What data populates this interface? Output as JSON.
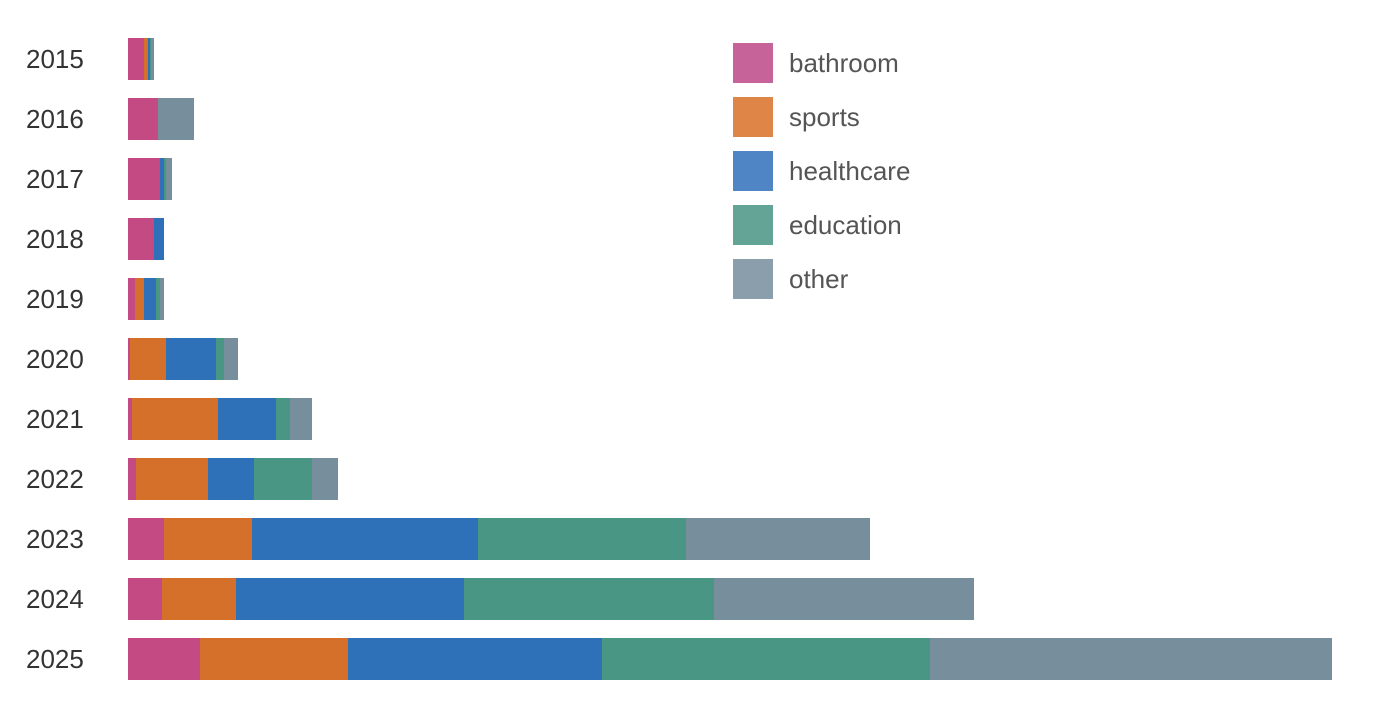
{
  "chart_data": {
    "type": "bar",
    "orientation": "horizontal",
    "stacked": true,
    "title": "",
    "xlabel": "",
    "ylabel": "",
    "grid": false,
    "legend_position": "top-right",
    "categories": [
      "2015",
      "2016",
      "2017",
      "2018",
      "2019",
      "2020",
      "2021",
      "2022",
      "2023",
      "2024",
      "2025"
    ],
    "series": [
      {
        "name": "bathroom",
        "color": "#c44a84",
        "values": [
          16,
          30,
          32,
          26,
          7,
          2,
          4,
          8,
          36,
          34,
          72
        ]
      },
      {
        "name": "sports",
        "color": "#d4702a",
        "values": [
          4,
          0,
          0,
          0,
          9,
          36,
          86,
          72,
          88,
          74,
          148
        ]
      },
      {
        "name": "healthcare",
        "color": "#2f71b8",
        "values": [
          2,
          0,
          4,
          10,
          12,
          50,
          58,
          46,
          226,
          228,
          254
        ]
      },
      {
        "name": "education",
        "color": "#4a9685",
        "values": [
          1,
          0,
          2,
          0,
          4,
          8,
          14,
          58,
          208,
          250,
          328
        ]
      },
      {
        "name": "other",
        "color": "#778e9c",
        "values": [
          3,
          36,
          6,
          0,
          4,
          14,
          22,
          26,
          184,
          260,
          402
        ]
      }
    ],
    "legend_colors": [
      "#c6649a",
      "#df8548",
      "#4f84c5",
      "#63a497",
      "#8a9fab"
    ]
  }
}
